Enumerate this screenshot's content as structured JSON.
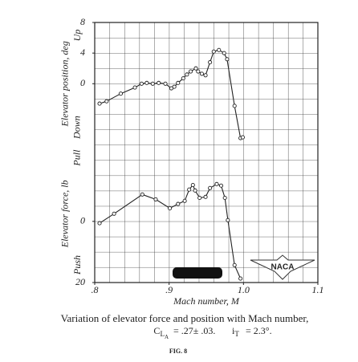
{
  "chart_data": [
    {
      "type": "line",
      "ylabel": "Elevator position, deg",
      "direction_labels": [
        "Up",
        "Down"
      ],
      "x": [
        0.8065,
        0.816,
        0.835,
        0.854,
        0.863,
        0.87,
        0.878,
        0.886,
        0.895,
        0.903,
        0.907,
        0.912,
        0.919,
        0.924,
        0.929,
        0.936,
        0.939,
        0.944,
        0.949,
        0.955,
        0.96,
        0.967,
        0.974,
        0.978,
        0.988,
        0.996,
        0.999
      ],
      "values": [
        -2.6,
        -2.3,
        -1.3,
        -0.5,
        0,
        0.1,
        0,
        0.1,
        0,
        -0.6,
        -0.4,
        0.1,
        0.7,
        1.2,
        1.6,
        2.0,
        1.6,
        1.3,
        1.1,
        2.8,
        4.2,
        4.4,
        4.0,
        3.2,
        -2.9,
        -7.1,
        -7.0
      ],
      "color": "#222222",
      "xlim": [
        0.8,
        1.1
      ],
      "ylim": [
        -8,
        8
      ],
      "yticks": [
        0,
        4,
        8
      ]
    },
    {
      "type": "line",
      "ylabel": "Elevator force, lb",
      "direction_labels": [
        "Pull",
        "Push"
      ],
      "xlabel": "Mach number, M",
      "x": [
        0.8065,
        0.826,
        0.864,
        0.882,
        0.901,
        0.912,
        0.921,
        0.927,
        0.932,
        0.935,
        0.941,
        0.949,
        0.955,
        0.964,
        0.97,
        0.975,
        0.979,
        0.988,
        0.996
      ],
      "values": [
        0.6,
        -2.5,
        -8.8,
        -7.2,
        -4.3,
        -5.7,
        -6.7,
        -10.4,
        -11.9,
        -10.1,
        -7.7,
        -8.0,
        -10.9,
        -12.2,
        -11.7,
        -7.7,
        -0.4,
        14.3,
        18.7
      ],
      "color": "#222222",
      "xlim": [
        0.8,
        1.1
      ],
      "xticks": [
        {
          "value": 0.8,
          "label": ".8"
        },
        {
          "value": 0.9,
          "label": ".9"
        },
        {
          "value": 1.0,
          "label": "1.0"
        },
        1.1
      ],
      "ylim": [
        20,
        -25
      ],
      "yticks": [
        0,
        20
      ]
    }
  ],
  "figure": {
    "caption": "Variation of elevator force and position with Mach number,",
    "formula": {
      "c": "C",
      "c_sub": "L",
      "c_subsub": "A",
      "c_value": "= .27± .03.",
      "i": "i",
      "i_sub": "T",
      "i_value": "= 2.3°."
    },
    "label": "FIG. 8",
    "logo": "NACA"
  }
}
